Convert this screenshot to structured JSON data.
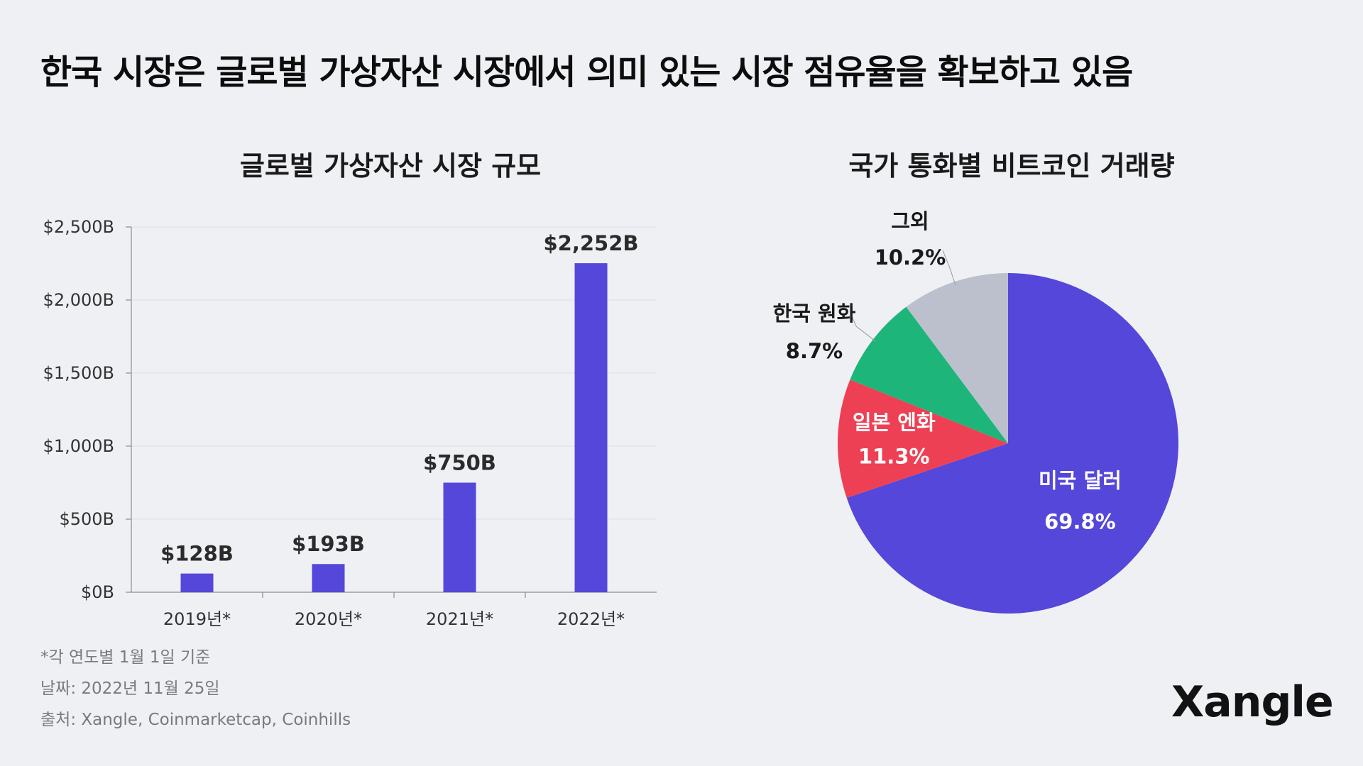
{
  "headline": "한국 시장은 글로벌 가상자산 시장에서 의미 있는 시장 점유율을 확보하고 있음",
  "chart_data": [
    {
      "type": "bar",
      "title": "글로벌 가상자산 시장 규모",
      "categories": [
        "2019년*",
        "2020년*",
        "2021년*",
        "2022년*"
      ],
      "values": [
        128,
        193,
        750,
        2252
      ],
      "value_labels": [
        "$128B",
        "$193B",
        "$750B",
        "$2,252B"
      ],
      "ylim": [
        0,
        2500
      ],
      "yticks": [
        0,
        500,
        1000,
        1500,
        2000,
        2500
      ],
      "ytick_labels": [
        "$0B",
        "$500B",
        "$1,000B",
        "$1,500B",
        "$2,000B",
        "$2,500B"
      ],
      "grid": true,
      "bar_color": "#5447d9"
    },
    {
      "type": "pie",
      "title": "국가 통화별 비트코인 거래량",
      "slices": [
        {
          "name": "미국 달러",
          "value": 69.8,
          "label": "69.8%",
          "color": "#5447d9"
        },
        {
          "name": "일본 엔화",
          "value": 11.3,
          "label": "11.3%",
          "color": "#ee4054"
        },
        {
          "name": "한국 원화",
          "value": 8.7,
          "label": "8.7%",
          "color": "#1db57a"
        },
        {
          "name": "그외",
          "value": 10.2,
          "label": "10.2%",
          "color": "#bcc0cc"
        }
      ]
    }
  ],
  "notes": {
    "footnote": "*각 연도별 1월 1일 기준",
    "date": "날짜: 2022년 11월 25일",
    "source": "출처: Xangle, Coinmarketcap, Coinhills"
  },
  "logo": "Xangle"
}
